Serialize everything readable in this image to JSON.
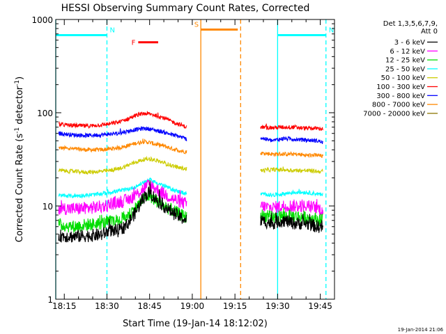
{
  "chart_data": {
    "type": "line",
    "title": "HESSI Observing Summary Count Rates, Corrected",
    "xlabel": "Start Time (19-Jan-14 18:12:02)",
    "ylabel_main": "Corrected Count Rate (s",
    "ylabel_sup1": "-1",
    "ylabel_mid": " detector",
    "ylabel_sup2": "-1",
    "ylabel_end": ")",
    "y_scale": "log",
    "ylim": [
      1,
      1000
    ],
    "xlim": [
      "18:12",
      "19:50"
    ],
    "x_ticks": [
      "18:15",
      "18:30",
      "18:45",
      "19:00",
      "19:15",
      "19:30",
      "19:45"
    ],
    "y_ticks": [
      "1",
      "10",
      "100",
      "1000"
    ],
    "grid": false,
    "legend_position": "right",
    "legend_title": [
      "Det 1,3,5,6,7,9,",
      "Att 0"
    ],
    "legend": [
      {
        "label": "3 - 6 keV",
        "color": "#000000"
      },
      {
        "label": "6 - 12 keV",
        "color": "#ff00ff"
      },
      {
        "label": "12 - 25 keV",
        "color": "#00dd00"
      },
      {
        "label": "25 - 50 keV",
        "color": "#00ffff"
      },
      {
        "label": "50 - 100 keV",
        "color": "#cccc00"
      },
      {
        "label": "100 - 300 keV",
        "color": "#ff0000"
      },
      {
        "label": "300 - 800 keV",
        "color": "#0000ff"
      },
      {
        "label": "800 - 7000 keV",
        "color": "#ff8800"
      },
      {
        "label": "7000 - 20000 keV",
        "color": "#8b7500"
      }
    ],
    "series": [
      {
        "name": "3 - 6 keV",
        "color": "#000000",
        "segments": [
          {
            "x": [
              "18:13",
              "18:18",
              "18:23",
              "18:28",
              "18:31",
              "18:34",
              "18:37",
              "18:40",
              "18:43",
              "18:45",
              "18:47",
              "18:50",
              "18:53",
              "18:56",
              "18:58"
            ],
            "y": [
              4.8,
              4.7,
              4.8,
              4.9,
              5.5,
              5.4,
              6.3,
              8.5,
              12.5,
              14.0,
              12.0,
              10.0,
              8.5,
              7.5,
              7.0
            ]
          },
          {
            "x": [
              "19:24",
              "19:28",
              "19:32",
              "19:36",
              "19:40",
              "19:44",
              "19:46"
            ],
            "y": [
              7.0,
              6.5,
              7.0,
              6.5,
              6.5,
              6.0,
              6.0
            ]
          }
        ]
      },
      {
        "name": "6 - 12 keV",
        "color": "#ff00ff",
        "segments": [
          {
            "x": [
              "18:13",
              "18:18",
              "18:23",
              "18:28",
              "18:31",
              "18:34",
              "18:37",
              "18:40",
              "18:43",
              "18:45",
              "18:47",
              "18:50",
              "18:53",
              "18:56",
              "18:58"
            ],
            "y": [
              9.5,
              9.3,
              9.5,
              9.8,
              10.5,
              11.0,
              11.5,
              13.0,
              15.5,
              17.0,
              15.5,
              13.5,
              12.0,
              11.0,
              10.5
            ]
          },
          {
            "x": [
              "19:24",
              "19:28",
              "19:32",
              "19:36",
              "19:40",
              "19:44",
              "19:46"
            ],
            "y": [
              10.0,
              9.5,
              10.0,
              10.0,
              10.0,
              9.5,
              9.0
            ]
          }
        ]
      },
      {
        "name": "12 - 25 keV",
        "color": "#00dd00",
        "segments": [
          {
            "x": [
              "18:13",
              "18:18",
              "18:23",
              "18:28",
              "18:31",
              "18:34",
              "18:37",
              "18:40",
              "18:43",
              "18:45",
              "18:47",
              "18:50",
              "18:53",
              "18:56",
              "18:58"
            ],
            "y": [
              6.3,
              6.0,
              6.3,
              6.5,
              6.8,
              7.0,
              7.8,
              9.5,
              12.0,
              13.0,
              11.5,
              10.0,
              9.0,
              8.0,
              7.5
            ]
          },
          {
            "x": [
              "19:24",
              "19:28",
              "19:32",
              "19:36",
              "19:40",
              "19:44",
              "19:46"
            ],
            "y": [
              8.0,
              7.5,
              7.8,
              7.8,
              7.5,
              7.2,
              7.0
            ]
          }
        ]
      },
      {
        "name": "25 - 50 keV",
        "color": "#00ffff",
        "segments": [
          {
            "x": [
              "18:13",
              "18:18",
              "18:23",
              "18:28",
              "18:31",
              "18:34",
              "18:37",
              "18:40",
              "18:43",
              "18:45",
              "18:47",
              "18:50",
              "18:53",
              "18:56",
              "18:58"
            ],
            "y": [
              13.0,
              12.8,
              13.0,
              13.5,
              14.0,
              14.5,
              15.0,
              16.0,
              18.0,
              19.0,
              18.0,
              16.5,
              15.0,
              14.0,
              13.5
            ]
          },
          {
            "x": [
              "19:24",
              "19:28",
              "19:32",
              "19:36",
              "19:40",
              "19:44",
              "19:46"
            ],
            "y": [
              13.5,
              13.0,
              13.5,
              14.0,
              14.0,
              13.5,
              13.0
            ]
          }
        ]
      },
      {
        "name": "50 - 100 keV",
        "color": "#cccc00",
        "segments": [
          {
            "x": [
              "18:13",
              "18:18",
              "18:23",
              "18:28",
              "18:31",
              "18:34",
              "18:37",
              "18:40",
              "18:43",
              "18:45",
              "18:47",
              "18:50",
              "18:53",
              "18:56",
              "18:58"
            ],
            "y": [
              24.0,
              23.5,
              23.0,
              23.5,
              24.0,
              25.0,
              27.0,
              29.5,
              31.5,
              32.0,
              31.0,
              29.0,
              27.0,
              25.5,
              25.0
            ]
          },
          {
            "x": [
              "19:24",
              "19:28",
              "19:32",
              "19:36",
              "19:40",
              "19:44",
              "19:46"
            ],
            "y": [
              24.0,
              24.5,
              24.5,
              24.0,
              24.0,
              23.5,
              23.5
            ]
          }
        ]
      },
      {
        "name": "100 - 300 keV",
        "color": "#ff0000",
        "segments": [
          {
            "x": [
              "18:13",
              "18:18",
              "18:23",
              "18:28",
              "18:31",
              "18:34",
              "18:37",
              "18:40",
              "18:43",
              "18:45",
              "18:47",
              "18:50",
              "18:53",
              "18:56",
              "18:58"
            ],
            "y": [
              75,
              73,
              72,
              74,
              76,
              79,
              85,
              93,
              98,
              97,
              94,
              88,
              80,
              74,
              70
            ]
          },
          {
            "x": [
              "19:24",
              "19:28",
              "19:32",
              "19:36",
              "19:40",
              "19:44",
              "19:46"
            ],
            "y": [
              70,
              69,
              70,
              70,
              68,
              68,
              67
            ]
          }
        ]
      },
      {
        "name": "300 - 800 keV",
        "color": "#0000ff",
        "segments": [
          {
            "x": [
              "18:13",
              "18:18",
              "18:23",
              "18:28",
              "18:31",
              "18:34",
              "18:37",
              "18:40",
              "18:43",
              "18:45",
              "18:47",
              "18:50",
              "18:53",
              "18:56",
              "18:58"
            ],
            "y": [
              60,
              58,
              57,
              58,
              59,
              60,
              63,
              66,
              68,
              67,
              65,
              62,
              58,
              55,
              52
            ]
          },
          {
            "x": [
              "19:24",
              "19:28",
              "19:32",
              "19:36",
              "19:40",
              "19:44",
              "19:46"
            ],
            "y": [
              54,
              50,
              53,
              52,
              51,
              50,
              48
            ]
          }
        ]
      },
      {
        "name": "800 - 7000 keV",
        "color": "#ff8800",
        "segments": [
          {
            "x": [
              "18:13",
              "18:18",
              "18:23",
              "18:28",
              "18:31",
              "18:34",
              "18:37",
              "18:40",
              "18:43",
              "18:45",
              "18:47",
              "18:50",
              "18:53",
              "18:56",
              "18:58"
            ],
            "y": [
              42,
              41,
              40,
              40,
              41,
              42,
              44,
              47,
              49,
              48,
              46,
              44,
              41,
              39,
              38
            ]
          },
          {
            "x": [
              "19:24",
              "19:28",
              "19:32",
              "19:36",
              "19:40",
              "19:44",
              "19:46"
            ],
            "y": [
              37,
              36,
              36,
              36,
              35,
              35,
              34
            ]
          }
        ]
      }
    ],
    "annotations": [
      {
        "label": "N",
        "color": "#00ffff",
        "solid_at": "18:12",
        "dashed_at": "18:30",
        "bar": [
          "18:12",
          "18:30"
        ],
        "bar_y": 680
      },
      {
        "label": "N",
        "color": "#00ffff",
        "solid_at": "19:30",
        "dashed_at": "19:47",
        "bar": [
          "19:30",
          "19:47"
        ],
        "bar_y": 680
      },
      {
        "label": "S",
        "color": "#ff8800",
        "solid_at": "19:03",
        "dashed_at": "19:17",
        "bar": [
          "19:03",
          "19:16"
        ],
        "bar_y": 780
      },
      {
        "label": "F",
        "color": "#ff0000",
        "bar": [
          "18:41",
          "18:48"
        ],
        "bar_y": 570
      }
    ],
    "timestamp": "19-Jan-2014 21:06"
  }
}
